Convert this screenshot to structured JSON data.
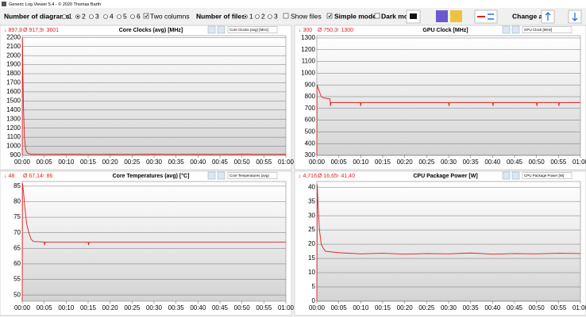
{
  "window_title": "Generic Log Viewer 5.4 - © 2020 Thomas Barth",
  "toolbar": {
    "diagrams_label": "Number of diagrams",
    "diagram_options": [
      "1",
      "2",
      "3",
      "4",
      "5",
      "6"
    ],
    "two_columns": "Two columns",
    "files_label": "Number of files",
    "file_options": [
      "1",
      "2",
      "3"
    ],
    "show_files": "Show files",
    "simple_mode": "Simple mode",
    "dark_mode": "Dark mod",
    "change_all": "Change all"
  },
  "chart_data": [
    {
      "type": "line",
      "title": "Core Clocks (avg) [MHz]",
      "selector": "Core Clocks (avg) [MHz]",
      "stats": [
        "↓ 897,8",
        "Ø 917,9",
        "↑ 3601"
      ],
      "color": "#e02020",
      "grid": true,
      "x": [
        0,
        0.05,
        0.15,
        0.3,
        0.5,
        0.8,
        1.2,
        2,
        5,
        10,
        15,
        20,
        25,
        30,
        35,
        40,
        45,
        50,
        55,
        60
      ],
      "values": [
        905,
        2200,
        1800,
        1400,
        1100,
        960,
        925,
        912,
        910,
        912,
        910,
        911,
        910,
        912,
        910,
        911,
        910,
        912,
        910,
        911
      ],
      "xlim": [
        0,
        60
      ],
      "ylim": [
        900,
        2220
      ],
      "xticks": [
        {
          "value": 0,
          "label": "00:00"
        },
        {
          "value": 5,
          "label": "00:05"
        },
        {
          "value": 10,
          "label": "00:10"
        },
        {
          "value": 15,
          "label": "00:15"
        },
        {
          "value": 20,
          "label": "00:20"
        },
        {
          "value": 25,
          "label": "00:25"
        },
        {
          "value": 30,
          "label": "00:30"
        },
        {
          "value": 35,
          "label": "00:35"
        },
        {
          "value": 40,
          "label": "00:40"
        },
        {
          "value": 45,
          "label": "00:45"
        },
        {
          "value": 50,
          "label": "00:50"
        },
        {
          "value": 55,
          "label": "00:55"
        },
        {
          "value": 60,
          "label": "01:00"
        }
      ],
      "yticks": [
        900,
        1000,
        1100,
        1200,
        1300,
        1400,
        1500,
        1600,
        1700,
        1800,
        1900,
        2000,
        2100,
        2200
      ]
    },
    {
      "type": "line",
      "title": "GPU Clock [MHz]",
      "selector": "GPU Clock [MHz]",
      "stats": [
        "↓ 300",
        "Ø 750,3",
        "↑ 1300"
      ],
      "color": "#e02020",
      "grid": true,
      "x": [
        0,
        0.05,
        1,
        1.5,
        3,
        3.1,
        3.2,
        5,
        9.9,
        10,
        10.1,
        30,
        30.1,
        30.2,
        40,
        40.1,
        40.2,
        50,
        50.1,
        50.2,
        55,
        55.1,
        55.2,
        60
      ],
      "values": [
        300,
        900,
        800,
        790,
        780,
        720,
        750,
        750,
        750,
        720,
        750,
        750,
        720,
        750,
        750,
        720,
        750,
        750,
        720,
        750,
        750,
        720,
        750,
        750
      ],
      "xlim": [
        0,
        60
      ],
      "ylim": [
        300,
        1320
      ],
      "xticks": [
        {
          "value": 0,
          "label": "00:00"
        },
        {
          "value": 5,
          "label": "00:05"
        },
        {
          "value": 10,
          "label": "00:10"
        },
        {
          "value": 15,
          "label": "00:15"
        },
        {
          "value": 20,
          "label": "00:20"
        },
        {
          "value": 25,
          "label": "00:25"
        },
        {
          "value": 30,
          "label": "00:30"
        },
        {
          "value": 35,
          "label": "00:35"
        },
        {
          "value": 40,
          "label": "00:40"
        },
        {
          "value": 45,
          "label": "00:45"
        },
        {
          "value": 50,
          "label": "00:50"
        },
        {
          "value": 55,
          "label": "00:55"
        },
        {
          "value": 60,
          "label": "01:00"
        }
      ],
      "yticks": [
        300,
        400,
        500,
        600,
        700,
        800,
        900,
        1000,
        1100,
        1200,
        1300
      ]
    },
    {
      "type": "line",
      "title": "Core Temperatures (avg) [°C]",
      "selector": "Core Temperatures (avg)",
      "stats": [
        "↓ 48",
        "Ø 67,14",
        "↑ 86"
      ],
      "color": "#e02020",
      "grid": true,
      "x": [
        0,
        0.05,
        0.3,
        0.6,
        1,
        1.5,
        2,
        2.5,
        5,
        5.1,
        5.2,
        10,
        15,
        15.1,
        15.2,
        20,
        30,
        40,
        50,
        60
      ],
      "values": [
        48,
        86,
        83,
        78,
        73,
        70,
        68,
        67.2,
        67,
        66,
        67,
        67,
        67,
        66,
        67,
        67,
        67,
        67,
        67,
        67
      ],
      "xlim": [
        0,
        60
      ],
      "ylim": [
        48,
        86.5
      ],
      "xticks": [
        {
          "value": 0,
          "label": "00:00"
        },
        {
          "value": 5,
          "label": "00:05"
        },
        {
          "value": 10,
          "label": "00:10"
        },
        {
          "value": 15,
          "label": "00:15"
        },
        {
          "value": 20,
          "label": "00:20"
        },
        {
          "value": 25,
          "label": "00:25"
        },
        {
          "value": 30,
          "label": "00:30"
        },
        {
          "value": 35,
          "label": "00:35"
        },
        {
          "value": 40,
          "label": "00:40"
        },
        {
          "value": 45,
          "label": "00:45"
        },
        {
          "value": 50,
          "label": "00:50"
        },
        {
          "value": 55,
          "label": "00:55"
        },
        {
          "value": 60,
          "label": "01:00"
        }
      ],
      "yticks": [
        50,
        55,
        60,
        65,
        70,
        75,
        80,
        85
      ]
    },
    {
      "type": "line",
      "title": "CPU Package Power [W]",
      "selector": "CPU Package Power [W]",
      "stats": [
        "↓ 4,716",
        "Ø 16,65",
        "↑ 41,40"
      ],
      "color": "#e02020",
      "grid": true,
      "x": [
        0,
        0.1,
        0.3,
        0.6,
        1,
        1.5,
        2,
        5,
        10,
        15,
        20,
        25,
        30,
        35,
        40,
        45,
        50,
        55,
        60
      ],
      "values": [
        0,
        41,
        33,
        25,
        20,
        18.5,
        17.5,
        17,
        16.6,
        16.8,
        16.5,
        16.7,
        16.6,
        16.9,
        16.5,
        16.7,
        16.6,
        16.8,
        16.7
      ],
      "xlim": [
        0,
        60
      ],
      "ylim": [
        0,
        42
      ],
      "xticks": [
        {
          "value": 0,
          "label": "00:00"
        },
        {
          "value": 5,
          "label": "00:05"
        },
        {
          "value": 10,
          "label": "00:10"
        },
        {
          "value": 15,
          "label": "00:15"
        },
        {
          "value": 20,
          "label": "00:20"
        },
        {
          "value": 25,
          "label": "00:25"
        },
        {
          "value": 30,
          "label": "00:30"
        },
        {
          "value": 35,
          "label": "00:35"
        },
        {
          "value": 40,
          "label": "00:40"
        },
        {
          "value": 45,
          "label": "00:45"
        },
        {
          "value": 50,
          "label": "00:50"
        },
        {
          "value": 55,
          "label": "00:55"
        },
        {
          "value": 60,
          "label": "01:00"
        }
      ],
      "yticks": [
        0,
        5,
        10,
        15,
        20,
        25,
        30,
        35,
        40
      ]
    }
  ]
}
